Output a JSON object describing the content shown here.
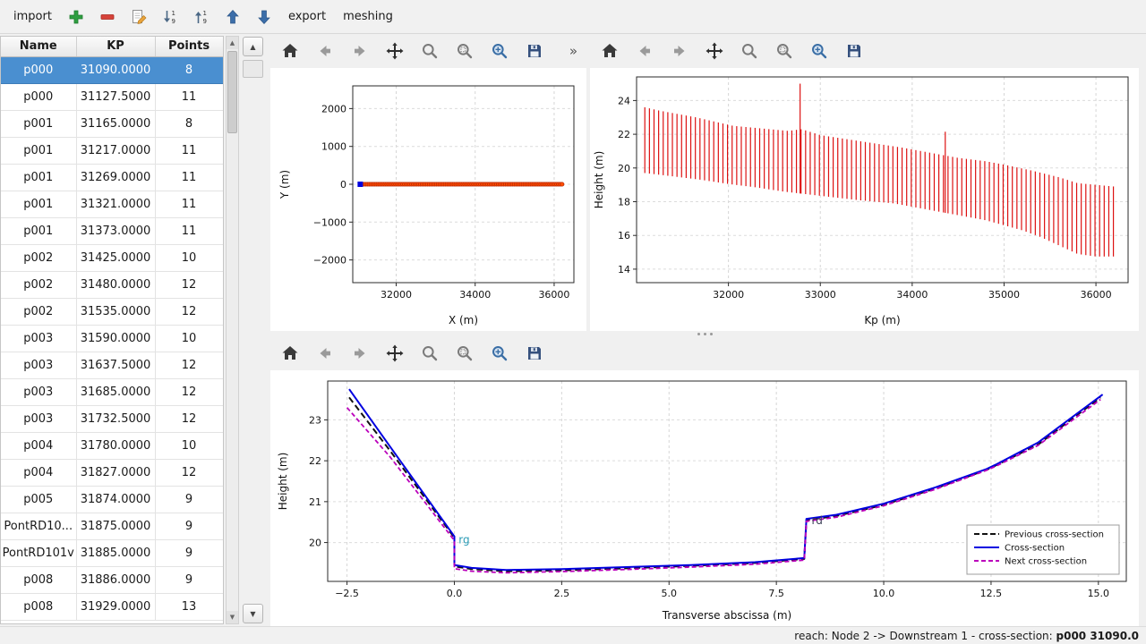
{
  "app_toolbar": {
    "items": [
      {
        "kind": "label",
        "name": "import-button",
        "label": "import"
      },
      {
        "kind": "icon",
        "name": "add-section-button",
        "icon": "plus"
      },
      {
        "kind": "icon",
        "name": "remove-section-button",
        "icon": "minus"
      },
      {
        "kind": "icon",
        "name": "edit-section-button",
        "icon": "edit"
      },
      {
        "kind": "icon",
        "name": "sort-descending-button",
        "icon": "sort-desc"
      },
      {
        "kind": "icon",
        "name": "sort-ascending-button",
        "icon": "sort-asc"
      },
      {
        "kind": "icon",
        "name": "move-up-button",
        "icon": "arrow-up"
      },
      {
        "kind": "icon",
        "name": "move-down-button",
        "icon": "arrow-down"
      },
      {
        "kind": "label",
        "name": "export-button",
        "label": "export"
      },
      {
        "kind": "label",
        "name": "meshing-button",
        "label": "meshing"
      }
    ]
  },
  "table": {
    "columns": [
      "Name",
      "KP",
      "Points"
    ],
    "selected_row": 0,
    "rows": [
      [
        "p000",
        "31090.0000",
        "8"
      ],
      [
        "p000",
        "31127.5000",
        "11"
      ],
      [
        "p001",
        "31165.0000",
        "8"
      ],
      [
        "p001",
        "31217.0000",
        "11"
      ],
      [
        "p001",
        "31269.0000",
        "11"
      ],
      [
        "p001",
        "31321.0000",
        "11"
      ],
      [
        "p001",
        "31373.0000",
        "11"
      ],
      [
        "p002",
        "31425.0000",
        "10"
      ],
      [
        "p002",
        "31480.0000",
        "12"
      ],
      [
        "p002",
        "31535.0000",
        "12"
      ],
      [
        "p003",
        "31590.0000",
        "10"
      ],
      [
        "p003",
        "31637.5000",
        "12"
      ],
      [
        "p003",
        "31685.0000",
        "12"
      ],
      [
        "p003",
        "31732.5000",
        "12"
      ],
      [
        "p004",
        "31780.0000",
        "10"
      ],
      [
        "p004",
        "31827.0000",
        "12"
      ],
      [
        "p005",
        "31874.0000",
        "9"
      ],
      [
        "PontRD10...",
        "31875.0000",
        "9"
      ],
      [
        "PontRD101v",
        "31885.0000",
        "9"
      ],
      [
        "p008",
        "31886.0000",
        "9"
      ],
      [
        "p008",
        "31929.0000",
        "13"
      ]
    ]
  },
  "figures": {
    "nav_icons": [
      "home",
      "back",
      "forward",
      "pan",
      "zoom",
      "zoom-rect",
      "subplots",
      "save"
    ],
    "overflow": "»"
  },
  "statusbar": {
    "prefix": "reach: Node 2 -> Downstream 1 - cross-section: ",
    "current": "p000 31090.0"
  },
  "colors": {
    "selection": "#4a8fd0",
    "scatter": "#ff4f00",
    "scatter_edge": "#b22000",
    "marker_blue": "#0000dd",
    "profile_red": "#dd1111",
    "cross_blue": "#0000e0",
    "previous_black": "#111111",
    "next_magenta": "#bb00bb"
  },
  "chart_data": [
    {
      "id": "xy",
      "type": "scatter",
      "xlabel": "X (m)",
      "ylabel": "Y (m)",
      "xlim": [
        30900,
        36500
      ],
      "ylim": [
        -2600,
        2600
      ],
      "xticks": [
        32000,
        34000,
        36000
      ],
      "xtick_labels": [
        "32000",
        "34000",
        "36000"
      ],
      "yticks": [
        -2000,
        -1000,
        0,
        1000,
        2000
      ],
      "ytick_labels": [
        "−2000",
        "−1000",
        "0",
        "1000",
        "2000"
      ],
      "ylabel_x": 20,
      "margins": {
        "l": 92,
        "r": 14,
        "t": 20,
        "b": 54
      },
      "series": [
        {
          "kind": "dotrun",
          "x0": 31090,
          "x1": 36200,
          "n": 115,
          "y": 0,
          "r": 2.2,
          "color": "#ff4f00",
          "edge": "#b22000"
        },
        {
          "kind": "marker",
          "x": 31090,
          "y": 0,
          "color": "#0000dd"
        }
      ]
    },
    {
      "id": "profile",
      "type": "vlines",
      "xlabel": "Kp (m)",
      "ylabel": "Height (m)",
      "xlim": [
        31000,
        36350
      ],
      "ylim": [
        13.2,
        25.4
      ],
      "xticks": [
        32000,
        33000,
        34000,
        35000,
        36000
      ],
      "xtick_labels": [
        "32000",
        "33000",
        "34000",
        "35000",
        "36000"
      ],
      "yticks": [
        14,
        16,
        18,
        20,
        22,
        24
      ],
      "ytick_labels": [
        "14",
        "16",
        "18",
        "20",
        "22",
        "24"
      ],
      "ylabel_x": 14,
      "margins": {
        "l": 52,
        "r": 12,
        "t": 10,
        "b": 54
      },
      "series": [
        {
          "kind": "vlines",
          "kp0": 31090,
          "kp1": 36200,
          "step": 50,
          "color": "#dd1111",
          "top": [
            [
              31090,
              23.6
            ],
            [
              31250,
              23.4
            ],
            [
              31450,
              23.2
            ],
            [
              31650,
              23.0
            ],
            [
              31850,
              22.75
            ],
            [
              32050,
              22.5
            ],
            [
              32350,
              22.35
            ],
            [
              32650,
              22.2
            ],
            [
              32800,
              22.3
            ],
            [
              33000,
              21.95
            ],
            [
              33300,
              21.7
            ],
            [
              33600,
              21.45
            ],
            [
              33900,
              21.2
            ],
            [
              34200,
              20.9
            ],
            [
              34500,
              20.6
            ],
            [
              34800,
              20.4
            ],
            [
              35000,
              20.2
            ],
            [
              35300,
              19.85
            ],
            [
              35600,
              19.45
            ],
            [
              35800,
              19.1
            ],
            [
              36000,
              19.0
            ],
            [
              36200,
              18.9
            ]
          ],
          "bottom": [
            [
              31090,
              19.7
            ],
            [
              31400,
              19.5
            ],
            [
              31700,
              19.3
            ],
            [
              32000,
              19.05
            ],
            [
              32300,
              18.85
            ],
            [
              32600,
              18.6
            ],
            [
              33000,
              18.35
            ],
            [
              33400,
              18.1
            ],
            [
              33800,
              17.9
            ],
            [
              34000,
              17.7
            ],
            [
              34400,
              17.3
            ],
            [
              34800,
              16.9
            ],
            [
              35000,
              16.6
            ],
            [
              35200,
              16.3
            ],
            [
              35400,
              15.9
            ],
            [
              35600,
              15.4
            ],
            [
              35800,
              14.9
            ],
            [
              36000,
              14.75
            ],
            [
              36200,
              14.75
            ]
          ],
          "spikes": [
            {
              "kp": 32780,
              "top": 25.0
            },
            {
              "kp": 34360,
              "top": 22.15
            }
          ]
        }
      ]
    },
    {
      "id": "cross",
      "type": "line",
      "xlabel": "Transverse abscissa (m)",
      "ylabel": "Height (m)",
      "xlim": [
        -2.95,
        15.65
      ],
      "ylim": [
        19.05,
        23.95
      ],
      "xticks": [
        -2.5,
        0,
        2.5,
        5,
        7.5,
        10,
        12.5,
        15
      ],
      "xtick_labels": [
        "−2.5",
        "0.0",
        "2.5",
        "5.0",
        "7.5",
        "10.0",
        "12.5",
        "15.0"
      ],
      "yticks": [
        20,
        21,
        22,
        23
      ],
      "ytick_labels": [
        "20",
        "21",
        "22",
        "23"
      ],
      "ylabel_x": 18,
      "margins": {
        "l": 64,
        "r": 14,
        "t": 12,
        "b": 50
      },
      "series": [
        {
          "kind": "line",
          "name": "Previous cross-section",
          "color": "#111111",
          "dash": "7,4",
          "width": 2,
          "points": [
            [
              -2.45,
              23.55
            ],
            [
              -1.5,
              22.25
            ],
            [
              0,
              20.12
            ],
            [
              0,
              19.42
            ],
            [
              0.4,
              19.35
            ],
            [
              1.2,
              19.3
            ],
            [
              2.5,
              19.32
            ],
            [
              4,
              19.37
            ],
            [
              5.5,
              19.43
            ],
            [
              7,
              19.5
            ],
            [
              8.15,
              19.6
            ],
            [
              8.2,
              20.55
            ],
            [
              8.9,
              20.65
            ],
            [
              10,
              20.92
            ],
            [
              11.2,
              21.32
            ],
            [
              12.4,
              21.78
            ],
            [
              12.6,
              21.88
            ],
            [
              13.6,
              22.4
            ],
            [
              15.05,
              23.55
            ]
          ]
        },
        {
          "kind": "line",
          "name": "Cross-section",
          "color": "#0000e0",
          "dash": null,
          "width": 2,
          "points": [
            [
              -2.45,
              23.75
            ],
            [
              -1.5,
              22.35
            ],
            [
              0,
              20.15
            ],
            [
              0,
              19.45
            ],
            [
              0.4,
              19.38
            ],
            [
              1.2,
              19.33
            ],
            [
              2.5,
              19.35
            ],
            [
              4,
              19.4
            ],
            [
              5.5,
              19.45
            ],
            [
              7,
              19.52
            ],
            [
              8.15,
              19.62
            ],
            [
              8.2,
              20.58
            ],
            [
              8.9,
              20.68
            ],
            [
              10,
              20.95
            ],
            [
              11.2,
              21.35
            ],
            [
              12.4,
              21.8
            ],
            [
              12.6,
              21.9
            ],
            [
              13.6,
              22.45
            ],
            [
              15.1,
              23.62
            ]
          ]
        },
        {
          "kind": "line",
          "name": "Next cross-section",
          "color": "#bb00bb",
          "dash": "5,3",
          "width": 1.8,
          "points": [
            [
              -2.5,
              23.3
            ],
            [
              -1.5,
              22.1
            ],
            [
              0,
              20.05
            ],
            [
              0,
              19.36
            ],
            [
              0.4,
              19.3
            ],
            [
              1.2,
              19.26
            ],
            [
              2.5,
              19.29
            ],
            [
              4,
              19.34
            ],
            [
              5.5,
              19.4
            ],
            [
              7,
              19.47
            ],
            [
              8.15,
              19.57
            ],
            [
              8.2,
              20.52
            ],
            [
              8.9,
              20.62
            ],
            [
              10,
              20.9
            ],
            [
              11.2,
              21.3
            ],
            [
              12.4,
              21.77
            ],
            [
              12.6,
              21.86
            ],
            [
              13.6,
              22.38
            ],
            [
              15.05,
              23.5
            ]
          ]
        }
      ],
      "annotations": [
        {
          "text": "rg",
          "x": 0.1,
          "y": 19.98,
          "color": "#2b9bb5"
        },
        {
          "text": "rd",
          "x": 8.32,
          "y": 20.45,
          "color": "#3a3f55"
        }
      ],
      "legend": {
        "items": [
          {
            "label": "Previous cross-section",
            "color": "#111111",
            "dash": "6,3"
          },
          {
            "label": "Cross-section",
            "color": "#0000e0",
            "dash": null
          },
          {
            "label": "Next cross-section",
            "color": "#bb00bb",
            "dash": "5,3"
          }
        ]
      }
    }
  ]
}
